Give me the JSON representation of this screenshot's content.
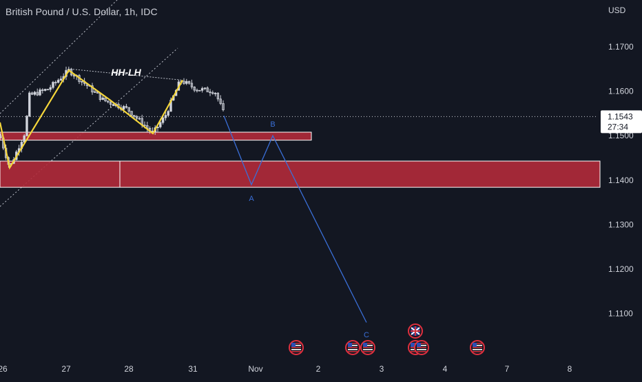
{
  "header": {
    "symbol_title": "British Pound / U.S. Dollar, 1h, IDC",
    "currency": "USD"
  },
  "price_tag": {
    "price": "1.1543",
    "countdown": "27:34"
  },
  "colors": {
    "background": "#131722",
    "candle_up": "#d1d4dc",
    "candle_down": "#d1d4dc",
    "zigzag": "#f5d63a",
    "projection": "#3a6fd8",
    "zone_fill": "#b22a3a",
    "zone_border": "#ffffff",
    "price_line": "#d1d4dc",
    "channel": "#bfc3cc"
  },
  "chart_data": {
    "type": "candlestick",
    "y_axis": {
      "ticks": [
        "1.1700",
        "1.1600",
        "1.1500",
        "1.1400",
        "1.1300",
        "1.1200",
        "1.1100"
      ],
      "range": [
        1.1008,
        1.1782
      ]
    },
    "x_axis": {
      "ticks": [
        "26",
        "27",
        "28",
        "31",
        "Nov",
        "2",
        "3",
        "4",
        "7",
        "8"
      ],
      "note": "hourly bars; days Oct 26 to Nov 8"
    },
    "current_price": 1.1543,
    "zigzag_points": [
      {
        "t": "26 04:00",
        "price": 1.1428
      },
      {
        "t": "27 01:00",
        "price": 1.1647
      },
      {
        "t": "28 03:00",
        "price": 1.1505
      },
      {
        "t": "28 15:00",
        "price": 1.1625
      }
    ],
    "projection_points": [
      {
        "label": "",
        "price": 1.1545
      },
      {
        "label": "A",
        "price": 1.139
      },
      {
        "label": "B",
        "price": 1.15
      },
      {
        "label": "C",
        "price": 1.108
      }
    ],
    "zones": [
      {
        "top": 1.1508,
        "bottom": 1.149
      },
      {
        "top": 1.1443,
        "bottom": 1.1384
      }
    ],
    "annotations": [
      "HH-LH",
      "A",
      "B",
      "C"
    ],
    "events": [
      {
        "day": "2",
        "country": "US"
      },
      {
        "day": "3",
        "country": "US"
      },
      {
        "day": "3",
        "country": "US"
      },
      {
        "day": "4",
        "country": "GB"
      },
      {
        "day": "4",
        "country": "US"
      },
      {
        "day": "4",
        "country": "US"
      },
      {
        "day": "7",
        "country": "US"
      }
    ]
  }
}
